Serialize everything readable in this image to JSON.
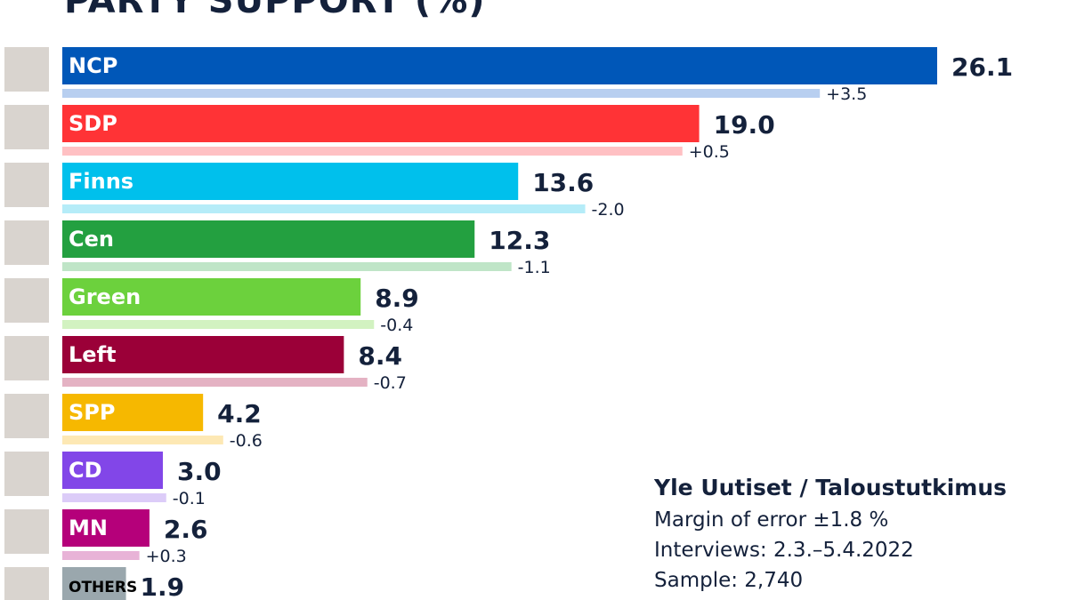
{
  "chart_data": {
    "type": "bar",
    "orientation": "horizontal",
    "title": "PARTY SUPPORT (%)",
    "categories": [
      "NCP",
      "SDP",
      "Finns",
      "Cen",
      "Green",
      "Left",
      "SPP",
      "CD",
      "MN",
      "OTHERS"
    ],
    "series": [
      {
        "values": [
          26.1,
          19.0,
          13.6,
          12.3,
          8.9,
          8.4,
          4.2,
          3.0,
          2.6,
          1.9
        ]
      }
    ],
    "value_labels": [
      "26.1",
      "19.0",
      "13.6",
      "12.3",
      "8.9",
      "8.4",
      "4.2",
      "3.0",
      "2.6",
      "1.9"
    ],
    "changes": [
      3.5,
      0.5,
      -2.0,
      -1.1,
      -0.4,
      -0.7,
      -0.6,
      -0.1,
      0.3,
      null
    ],
    "change_labels": [
      "+3.5",
      "+0.5",
      "-2.0",
      "-1.1",
      "-0.4",
      "-0.7",
      "-0.6",
      "-0.1",
      "+0.3",
      ""
    ],
    "previous_values": [
      22.6,
      18.5,
      15.6,
      13.4,
      9.3,
      9.1,
      4.8,
      3.1,
      2.3,
      null
    ],
    "colors": [
      "#0057b8",
      "#ff3336",
      "#00c0ec",
      "#23a040",
      "#6cd13d",
      "#9b0038",
      "#f6b800",
      "#8246e8",
      "#b5007a",
      "#9aa7ad"
    ],
    "previous_colors": [
      "#b8cff0",
      "#ffc0c3",
      "#b5ecf8",
      "#bfe5c7",
      "#d2f2c1",
      "#e4b2c3",
      "#fde8b4",
      "#dcccf8",
      "#e8b3d7",
      "#dde3e5"
    ],
    "xlim": [
      0,
      26.1
    ],
    "grid": false,
    "legend": "none"
  },
  "source": {
    "title": "Yle Uutiset / Taloustutkimus",
    "lines": [
      "Margin of error ±1.8 %",
      "Interviews: 2.3.–5.4.2022",
      "Sample: 2,740"
    ]
  }
}
